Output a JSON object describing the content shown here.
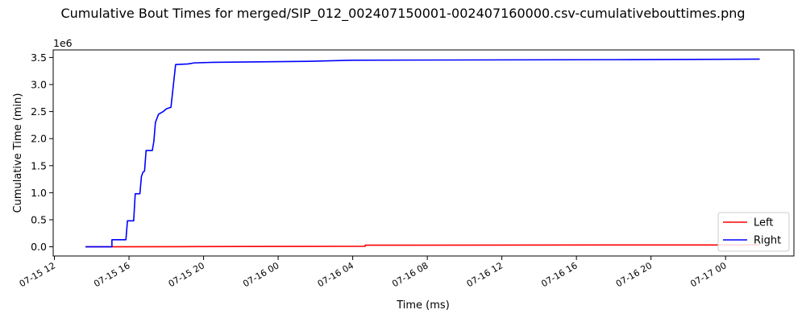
{
  "chart_data": {
    "type": "line",
    "title": "Cumulative Bout Times for merged/SIP_012_002407150001-002407160000.csv-cumulativebouttimes.png",
    "xlabel": "Time (ms)",
    "ylabel": "Cumulative Time (min)",
    "y_offset_label": "1e6",
    "ylim": [
      -0.17,
      3.64
    ],
    "xlim": [
      "2024-07-15T11:56",
      "2024-07-17T03:40"
    ],
    "x_ticks": [
      {
        "t": "2024-07-15T12:00",
        "label": "07-15 12"
      },
      {
        "t": "2024-07-15T16:00",
        "label": "07-15 16"
      },
      {
        "t": "2024-07-15T20:00",
        "label": "07-15 20"
      },
      {
        "t": "2024-07-16T00:00",
        "label": "07-16 00"
      },
      {
        "t": "2024-07-16T04:00",
        "label": "07-16 04"
      },
      {
        "t": "2024-07-16T08:00",
        "label": "07-16 08"
      },
      {
        "t": "2024-07-16T12:00",
        "label": "07-16 12"
      },
      {
        "t": "2024-07-16T16:00",
        "label": "07-16 16"
      },
      {
        "t": "2024-07-16T20:00",
        "label": "07-16 20"
      },
      {
        "t": "2024-07-17T00:00",
        "label": "07-17 00"
      }
    ],
    "y_ticks": [
      {
        "v": 0.0,
        "label": "0.0"
      },
      {
        "v": 0.5,
        "label": "0.5"
      },
      {
        "v": 1.0,
        "label": "1.0"
      },
      {
        "v": 1.5,
        "label": "1.5"
      },
      {
        "v": 2.0,
        "label": "2.0"
      },
      {
        "v": 2.5,
        "label": "2.5"
      },
      {
        "v": 3.0,
        "label": "3.0"
      },
      {
        "v": 3.5,
        "label": "3.5"
      }
    ],
    "grid": false,
    "legend_position": "bottom-right",
    "series": [
      {
        "name": "Left",
        "color": "#ff0000",
        "points": [
          [
            "2024-07-15T13:40",
            0.0
          ],
          [
            "2024-07-15T18:40",
            0.002
          ],
          [
            "2024-07-15T19:40",
            0.004
          ],
          [
            "2024-07-15T22:10",
            0.006
          ],
          [
            "2024-07-16T01:40",
            0.008
          ],
          [
            "2024-07-16T04:40",
            0.01
          ],
          [
            "2024-07-16T04:40",
            0.03
          ],
          [
            "2024-07-17T01:50",
            0.035
          ]
        ]
      },
      {
        "name": "Right",
        "color": "#0000ff",
        "points": [
          [
            "2024-07-15T13:40",
            0.0
          ],
          [
            "2024-07-15T15:05",
            0.0
          ],
          [
            "2024-07-15T15:05",
            0.13
          ],
          [
            "2024-07-15T15:50",
            0.13
          ],
          [
            "2024-07-15T15:55",
            0.48
          ],
          [
            "2024-07-15T16:15",
            0.48
          ],
          [
            "2024-07-15T16:20",
            0.98
          ],
          [
            "2024-07-15T16:35",
            0.98
          ],
          [
            "2024-07-15T16:40",
            1.3
          ],
          [
            "2024-07-15T16:45",
            1.38
          ],
          [
            "2024-07-15T16:50",
            1.4
          ],
          [
            "2024-07-15T16:55",
            1.78
          ],
          [
            "2024-07-15T17:15",
            1.78
          ],
          [
            "2024-07-15T17:20",
            1.95
          ],
          [
            "2024-07-15T17:25",
            2.3
          ],
          [
            "2024-07-15T17:35",
            2.45
          ],
          [
            "2024-07-15T17:50",
            2.5
          ],
          [
            "2024-07-15T18:00",
            2.55
          ],
          [
            "2024-07-15T18:15",
            2.58
          ],
          [
            "2024-07-15T18:30",
            3.37
          ],
          [
            "2024-07-15T19:10",
            3.38
          ],
          [
            "2024-07-15T19:30",
            3.4
          ],
          [
            "2024-07-15T20:30",
            3.41
          ],
          [
            "2024-07-16T01:50",
            3.43
          ],
          [
            "2024-07-16T04:00",
            3.45
          ],
          [
            "2024-07-16T19:00",
            3.46
          ],
          [
            "2024-07-17T01:50",
            3.47
          ]
        ]
      }
    ]
  }
}
